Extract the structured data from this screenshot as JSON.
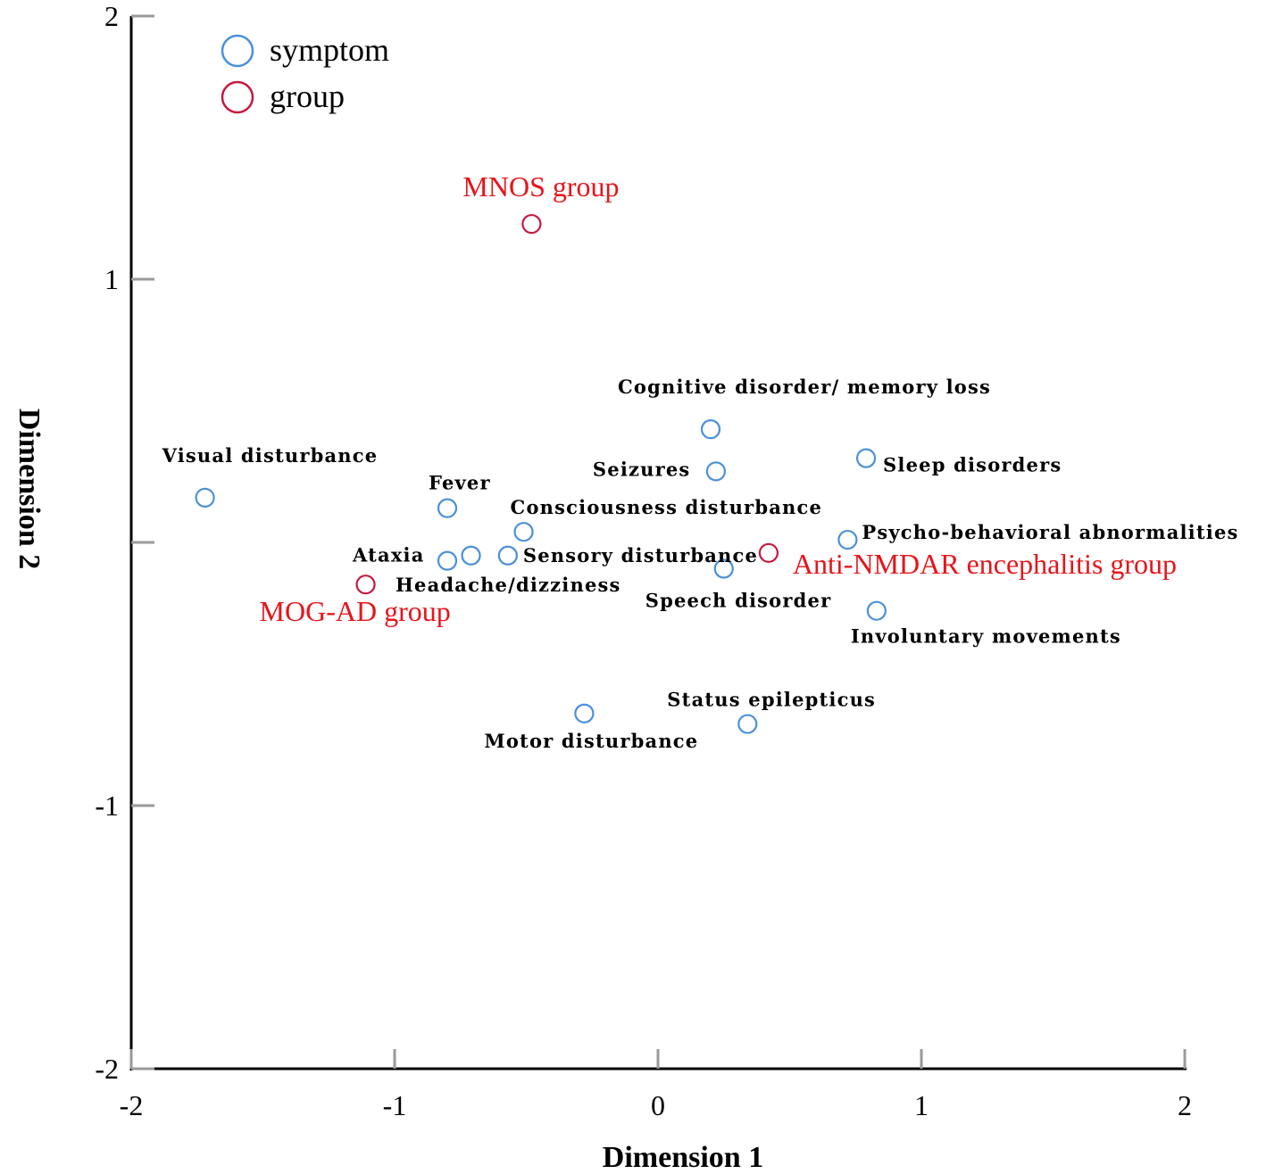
{
  "chart_data": {
    "type": "scatter",
    "xlabel": "Dimension 1",
    "ylabel": "Dimension 2",
    "xlim": [
      -2,
      2
    ],
    "ylim": [
      -2,
      2
    ],
    "x_ticks": [
      "-2",
      "-1",
      "0",
      "1",
      "2"
    ],
    "y_ticks": [
      "-2",
      "-1",
      "1",
      "2"
    ],
    "legend": {
      "position": "top-left",
      "entries": [
        {
          "name": "symptom",
          "color": "#4a90d9"
        },
        {
          "name": "group",
          "color": "#c8173d"
        }
      ]
    },
    "series": [
      {
        "name": "symptom",
        "color": "#4a90d9",
        "points": [
          {
            "label": "Cognitive disorder/ memory loss",
            "x": 0.2,
            "y": 0.43
          },
          {
            "label": "Seizures",
            "x": 0.22,
            "y": 0.27
          },
          {
            "label": "Sleep disorders",
            "x": 0.79,
            "y": 0.32
          },
          {
            "label": "Visual disturbance",
            "x": -1.72,
            "y": 0.17
          },
          {
            "label": "Fever",
            "x": -0.8,
            "y": 0.13
          },
          {
            "label": "Consciousness disturbance",
            "x": -0.51,
            "y": 0.04
          },
          {
            "label": "Psycho-behavioral abnormalities",
            "x": 0.72,
            "y": 0.01
          },
          {
            "label": "Ataxia",
            "x": -0.8,
            "y": -0.07
          },
          {
            "label": "",
            "x": -0.71,
            "y": -0.05
          },
          {
            "label": "Sensory disturbance",
            "x": -0.57,
            "y": -0.05
          },
          {
            "label": "Speech disorder",
            "x": 0.25,
            "y": -0.1
          },
          {
            "label": "Involuntary movements",
            "x": 0.83,
            "y": -0.26
          },
          {
            "label": "Status epilepticus",
            "x": 0.34,
            "y": -0.69
          },
          {
            "label": "Motor disturbance",
            "x": -0.28,
            "y": -0.65
          }
        ]
      },
      {
        "name": "group",
        "color": "#c8173d",
        "points": [
          {
            "label": "MNOS group",
            "x": -0.48,
            "y": 1.21
          },
          {
            "label": "Anti-NMDAR encephalitis group",
            "x": 0.42,
            "y": -0.04
          },
          {
            "label": "MOG-AD group",
            "x": -1.11,
            "y": -0.16
          }
        ]
      }
    ],
    "extra_labels": [
      {
        "label": "Headache/dizziness",
        "x": -1.0,
        "y": -0.16
      }
    ],
    "grid": false
  }
}
